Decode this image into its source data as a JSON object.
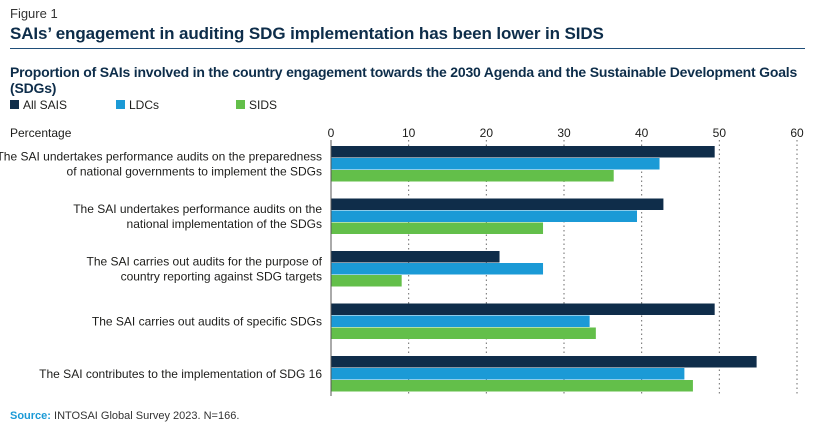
{
  "figure_label": "Figure 1",
  "figure_title": "SAIs’ engagement in auditing SDG implementation has been lower in SIDS",
  "chart_data": {
    "type": "bar",
    "orientation": "horizontal",
    "title": "Proportion of SAIs involved in the country engagement towards the 2030 Agenda and the Sustainable Development Goals (SDGs)",
    "xlabel": "Percentage",
    "xlim": [
      0,
      60
    ],
    "ticks": [
      "0",
      "10",
      "20",
      "30",
      "40",
      "50",
      "60"
    ],
    "legend_position": "top-left",
    "categories": [
      [
        "The SAI undertakes performance audits on the preparedness",
        "of national governments to implement the SDGs"
      ],
      [
        "The SAI undertakes performance audits on the",
        "national implementation of the SDGs"
      ],
      [
        "The SAI carries out audits for the purpose of",
        "country reporting against SDG targets"
      ],
      [
        "The SAI carries out audits of specific SDGs"
      ],
      [
        "The SAI contributes to the implementation of SDG 16"
      ]
    ],
    "series": [
      {
        "name": "All SAIS",
        "color": "#0f2d4a",
        "values": [
          49.4,
          42.8,
          21.7,
          49.4,
          54.8
        ]
      },
      {
        "name": "LDCs",
        "color": "#1b9ad6",
        "values": [
          42.3,
          39.4,
          27.3,
          33.3,
          45.5
        ]
      },
      {
        "name": "SIDS",
        "color": "#63bf4a",
        "values": [
          36.4,
          27.3,
          9.1,
          34.1,
          46.6
        ]
      }
    ]
  },
  "source": {
    "key": "Source:",
    "text": " INTOSAI Global Survey 2023. N=166."
  }
}
